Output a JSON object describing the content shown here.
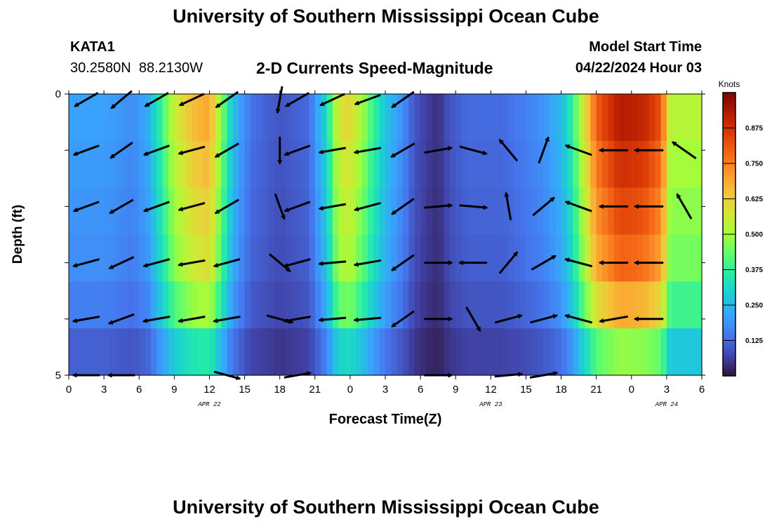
{
  "header": {
    "title": "University of Southern Mississippi Ocean Cube",
    "station_id": "KATA1",
    "station_coords": "30.2580N  88.2130W",
    "plot_title": "2-D Currents Speed-Magnitude",
    "model_start_label": "Model Start Time",
    "model_start_time": "04/22/2024 Hour 03"
  },
  "footer": {
    "title": "University of Southern Mississippi Ocean Cube"
  },
  "chart_data": {
    "type": "heatmap",
    "xlabel": "Forecast Time(Z)",
    "ylabel": "Depth (ft)",
    "x_tick_labels": [
      "0",
      "3",
      "6",
      "9",
      "12",
      "15",
      "18",
      "21",
      "0",
      "3",
      "6",
      "9",
      "12",
      "15",
      "18",
      "21",
      "0",
      "3",
      "6"
    ],
    "date_labels": [
      {
        "text": "APR 22",
        "tick_index": 4
      },
      {
        "text": "APR 23",
        "tick_index": 12
      },
      {
        "text": "APR 24",
        "tick_index": 17
      }
    ],
    "y_tick_labels": [
      {
        "text": "0",
        "depth": 0
      },
      {
        "text": "5",
        "depth": 5
      }
    ],
    "depth_range": [
      0,
      5
    ],
    "depth_layers": 5,
    "colorbar": {
      "unit": "Knots",
      "range": [
        0,
        1
      ],
      "ticks": [
        "0.125",
        "0.250",
        "0.375",
        "0.500",
        "0.625",
        "0.750",
        "0.875"
      ],
      "tick_values": [
        0.125,
        0.25,
        0.375,
        0.5,
        0.625,
        0.75,
        0.875
      ]
    },
    "speed_profile": [
      {
        "hour": 0,
        "speed": 0.2
      },
      {
        "hour": 3,
        "speed": 0.2
      },
      {
        "hour": 5.5,
        "speed": 0.17
      },
      {
        "hour": 6.8,
        "speed": 0.22
      },
      {
        "hour": 8,
        "speed": 0.38
      },
      {
        "hour": 9,
        "speed": 0.52
      },
      {
        "hour": 10.5,
        "speed": 0.62
      },
      {
        "hour": 12,
        "speed": 0.66
      },
      {
        "hour": 13,
        "speed": 0.45
      },
      {
        "hour": 14,
        "speed": 0.25
      },
      {
        "hour": 15.5,
        "speed": 0.13
      },
      {
        "hour": 18,
        "speed": 0.09
      },
      {
        "hour": 20.5,
        "speed": 0.12
      },
      {
        "hour": 22,
        "speed": 0.3
      },
      {
        "hour": 23,
        "speed": 0.55
      },
      {
        "hour": 24,
        "speed": 0.58
      },
      {
        "hour": 25.5,
        "speed": 0.42
      },
      {
        "hour": 27,
        "speed": 0.26
      },
      {
        "hour": 28.5,
        "speed": 0.17
      },
      {
        "hour": 29.5,
        "speed": 0.09
      },
      {
        "hour": 30.5,
        "speed": 0.06
      },
      {
        "hour": 31.5,
        "speed": 0.04
      },
      {
        "hour": 32.5,
        "speed": 0.09
      },
      {
        "hour": 34,
        "speed": 0.12
      },
      {
        "hour": 37,
        "speed": 0.12
      },
      {
        "hour": 39,
        "speed": 0.15
      },
      {
        "hour": 40.5,
        "speed": 0.18
      },
      {
        "hour": 42,
        "speed": 0.24
      },
      {
        "hour": 43,
        "speed": 0.36
      },
      {
        "hour": 44,
        "speed": 0.56
      },
      {
        "hour": 45,
        "speed": 0.76
      },
      {
        "hour": 47,
        "speed": 0.88
      },
      {
        "hour": 49,
        "speed": 0.86
      },
      {
        "hour": 50.5,
        "speed": 0.78
      },
      {
        "hour": 51,
        "speed": 0.62
      },
      {
        "hour": 51.3,
        "speed": 0.5
      }
    ],
    "layer_factors": [
      1.05,
      1.0,
      0.95,
      0.9,
      0.78,
      0.55
    ],
    "vectors": [
      {
        "hour": 1.5,
        "depth": 0.1,
        "speed": 0.2,
        "angle": 210
      },
      {
        "hour": 4.5,
        "depth": 0.1,
        "speed": 0.2,
        "angle": 220
      },
      {
        "hour": 7.5,
        "depth": 0.1,
        "speed": 0.2,
        "angle": 210
      },
      {
        "hour": 10.5,
        "depth": 0.1,
        "speed": 0.2,
        "angle": 205
      },
      {
        "hour": 13.5,
        "depth": 0.1,
        "speed": 0.2,
        "angle": 215
      },
      {
        "hour": 18,
        "depth": 0.1,
        "speed": 0.2,
        "angle": 260
      },
      {
        "hour": 19.5,
        "depth": 0.1,
        "speed": 0.2,
        "angle": 210
      },
      {
        "hour": 22.5,
        "depth": 0.1,
        "speed": 0.2,
        "angle": 205
      },
      {
        "hour": 25.5,
        "depth": 0.1,
        "speed": 0.2,
        "angle": 200
      },
      {
        "hour": 28.5,
        "depth": 0.1,
        "speed": 0.2,
        "angle": 215
      },
      {
        "hour": 1.5,
        "depth": 1.0,
        "speed": 0.2,
        "angle": 200
      },
      {
        "hour": 4.5,
        "depth": 1.0,
        "speed": 0.2,
        "angle": 215
      },
      {
        "hour": 7.5,
        "depth": 1.0,
        "speed": 0.2,
        "angle": 200
      },
      {
        "hour": 10.5,
        "depth": 1.0,
        "speed": 0.2,
        "angle": 195
      },
      {
        "hour": 13.5,
        "depth": 1.0,
        "speed": 0.2,
        "angle": 210
      },
      {
        "hour": 18,
        "depth": 1.0,
        "speed": 0.2,
        "angle": 270
      },
      {
        "hour": 19.5,
        "depth": 1.0,
        "speed": 0.2,
        "angle": 200
      },
      {
        "hour": 22.5,
        "depth": 1.0,
        "speed": 0.2,
        "angle": 190
      },
      {
        "hour": 25.5,
        "depth": 1.0,
        "speed": 0.2,
        "angle": 190
      },
      {
        "hour": 28.5,
        "depth": 1.0,
        "speed": 0.2,
        "angle": 210
      },
      {
        "hour": 1.5,
        "depth": 2.0,
        "speed": 0.2,
        "angle": 200
      },
      {
        "hour": 4.5,
        "depth": 2.0,
        "speed": 0.2,
        "angle": 210
      },
      {
        "hour": 7.5,
        "depth": 2.0,
        "speed": 0.2,
        "angle": 200
      },
      {
        "hour": 10.5,
        "depth": 2.0,
        "speed": 0.2,
        "angle": 195
      },
      {
        "hour": 13.5,
        "depth": 2.0,
        "speed": 0.2,
        "angle": 210
      },
      {
        "hour": 18,
        "depth": 2.0,
        "speed": 0.2,
        "angle": 290
      },
      {
        "hour": 19.5,
        "depth": 2.0,
        "speed": 0.2,
        "angle": 200
      },
      {
        "hour": 22.5,
        "depth": 2.0,
        "speed": 0.2,
        "angle": 190
      },
      {
        "hour": 25.5,
        "depth": 2.0,
        "speed": 0.2,
        "angle": 195
      },
      {
        "hour": 28.5,
        "depth": 2.0,
        "speed": 0.2,
        "angle": 215
      },
      {
        "hour": 1.5,
        "depth": 3.0,
        "speed": 0.2,
        "angle": 195
      },
      {
        "hour": 4.5,
        "depth": 3.0,
        "speed": 0.2,
        "angle": 205
      },
      {
        "hour": 7.5,
        "depth": 3.0,
        "speed": 0.2,
        "angle": 195
      },
      {
        "hour": 10.5,
        "depth": 3.0,
        "speed": 0.2,
        "angle": 190
      },
      {
        "hour": 13.5,
        "depth": 3.0,
        "speed": 0.2,
        "angle": 195
      },
      {
        "hour": 18,
        "depth": 3.0,
        "speed": 0.2,
        "angle": 320
      },
      {
        "hour": 19.5,
        "depth": 3.0,
        "speed": 0.2,
        "angle": 195
      },
      {
        "hour": 22.5,
        "depth": 3.0,
        "speed": 0.2,
        "angle": 185
      },
      {
        "hour": 25.5,
        "depth": 3.0,
        "speed": 0.2,
        "angle": 190
      },
      {
        "hour": 28.5,
        "depth": 3.0,
        "speed": 0.2,
        "angle": 215
      },
      {
        "hour": 1.5,
        "depth": 4.0,
        "speed": 0.2,
        "angle": 190
      },
      {
        "hour": 4.5,
        "depth": 4.0,
        "speed": 0.2,
        "angle": 200
      },
      {
        "hour": 7.5,
        "depth": 4.0,
        "speed": 0.2,
        "angle": 190
      },
      {
        "hour": 10.5,
        "depth": 4.0,
        "speed": 0.2,
        "angle": 190
      },
      {
        "hour": 13.5,
        "depth": 4.0,
        "speed": 0.2,
        "angle": 190
      },
      {
        "hour": 18,
        "depth": 4.0,
        "speed": 0.2,
        "angle": 345
      },
      {
        "hour": 19.5,
        "depth": 4.0,
        "speed": 0.2,
        "angle": 190
      },
      {
        "hour": 22.5,
        "depth": 4.0,
        "speed": 0.2,
        "angle": 185
      },
      {
        "hour": 25.5,
        "depth": 4.0,
        "speed": 0.2,
        "angle": 185
      },
      {
        "hour": 28.5,
        "depth": 4.0,
        "speed": 0.2,
        "angle": 215
      },
      {
        "hour": 1.5,
        "depth": 5.0,
        "speed": 0.2,
        "angle": 180
      },
      {
        "hour": 4.5,
        "depth": 5.0,
        "speed": 0.2,
        "angle": 180
      },
      {
        "hour": 13.5,
        "depth": 5.0,
        "speed": 0.2,
        "angle": 345
      },
      {
        "hour": 19.5,
        "depth": 5.0,
        "speed": 0.2,
        "angle": 10
      },
      {
        "hour": 31.5,
        "depth": 1.0,
        "speed": 0.3,
        "angle": 10
      },
      {
        "hour": 34.5,
        "depth": 1.0,
        "speed": 0.3,
        "angle": 345
      },
      {
        "hour": 37.5,
        "depth": 1.0,
        "speed": 0.3,
        "angle": 130
      },
      {
        "hour": 40.5,
        "depth": 1.0,
        "speed": 0.3,
        "angle": 70
      },
      {
        "hour": 43.5,
        "depth": 1.0,
        "speed": 0.3,
        "angle": 160
      },
      {
        "hour": 46.5,
        "depth": 1.0,
        "speed": 0.4,
        "angle": 180
      },
      {
        "hour": 49.5,
        "depth": 1.0,
        "speed": 0.4,
        "angle": 180
      },
      {
        "hour": 52.5,
        "depth": 1.0,
        "speed": 0.4,
        "angle": 145
      },
      {
        "hour": 31.5,
        "depth": 2.0,
        "speed": 0.3,
        "angle": 5
      },
      {
        "hour": 34.5,
        "depth": 2.0,
        "speed": 0.3,
        "angle": 355
      },
      {
        "hour": 37.5,
        "depth": 2.0,
        "speed": 0.3,
        "angle": 100
      },
      {
        "hour": 40.5,
        "depth": 2.0,
        "speed": 0.3,
        "angle": 40
      },
      {
        "hour": 43.5,
        "depth": 2.0,
        "speed": 0.3,
        "angle": 160
      },
      {
        "hour": 46.5,
        "depth": 2.0,
        "speed": 0.4,
        "angle": 180
      },
      {
        "hour": 49.5,
        "depth": 2.0,
        "speed": 0.4,
        "angle": 180
      },
      {
        "hour": 52.5,
        "depth": 2.0,
        "speed": 0.4,
        "angle": 120
      },
      {
        "hour": 31.5,
        "depth": 3.0,
        "speed": 0.3,
        "angle": 0
      },
      {
        "hour": 34.5,
        "depth": 3.0,
        "speed": 0.3,
        "angle": 180
      },
      {
        "hour": 37.5,
        "depth": 3.0,
        "speed": 0.3,
        "angle": 50
      },
      {
        "hour": 40.5,
        "depth": 3.0,
        "speed": 0.3,
        "angle": 30
      },
      {
        "hour": 43.5,
        "depth": 3.0,
        "speed": 0.3,
        "angle": 165
      },
      {
        "hour": 46.5,
        "depth": 3.0,
        "speed": 0.4,
        "angle": 180
      },
      {
        "hour": 49.5,
        "depth": 3.0,
        "speed": 0.4,
        "angle": 180
      },
      {
        "hour": 31.5,
        "depth": 4.0,
        "speed": 0.3,
        "angle": 0
      },
      {
        "hour": 34.5,
        "depth": 4.0,
        "speed": 0.3,
        "angle": 300
      },
      {
        "hour": 37.5,
        "depth": 4.0,
        "speed": 0.3,
        "angle": 15
      },
      {
        "hour": 40.5,
        "depth": 4.0,
        "speed": 0.3,
        "angle": 15
      },
      {
        "hour": 43.5,
        "depth": 4.0,
        "speed": 0.3,
        "angle": 165
      },
      {
        "hour": 46.5,
        "depth": 4.0,
        "speed": 0.4,
        "angle": 190
      },
      {
        "hour": 49.5,
        "depth": 4.0,
        "speed": 0.4,
        "angle": 180
      },
      {
        "hour": 31.5,
        "depth": 5.0,
        "speed": 0.3,
        "angle": 0
      },
      {
        "hour": 37.5,
        "depth": 5.0,
        "speed": 0.3,
        "angle": 5
      },
      {
        "hour": 40.5,
        "depth": 5.0,
        "speed": 0.3,
        "angle": 10
      }
    ]
  }
}
